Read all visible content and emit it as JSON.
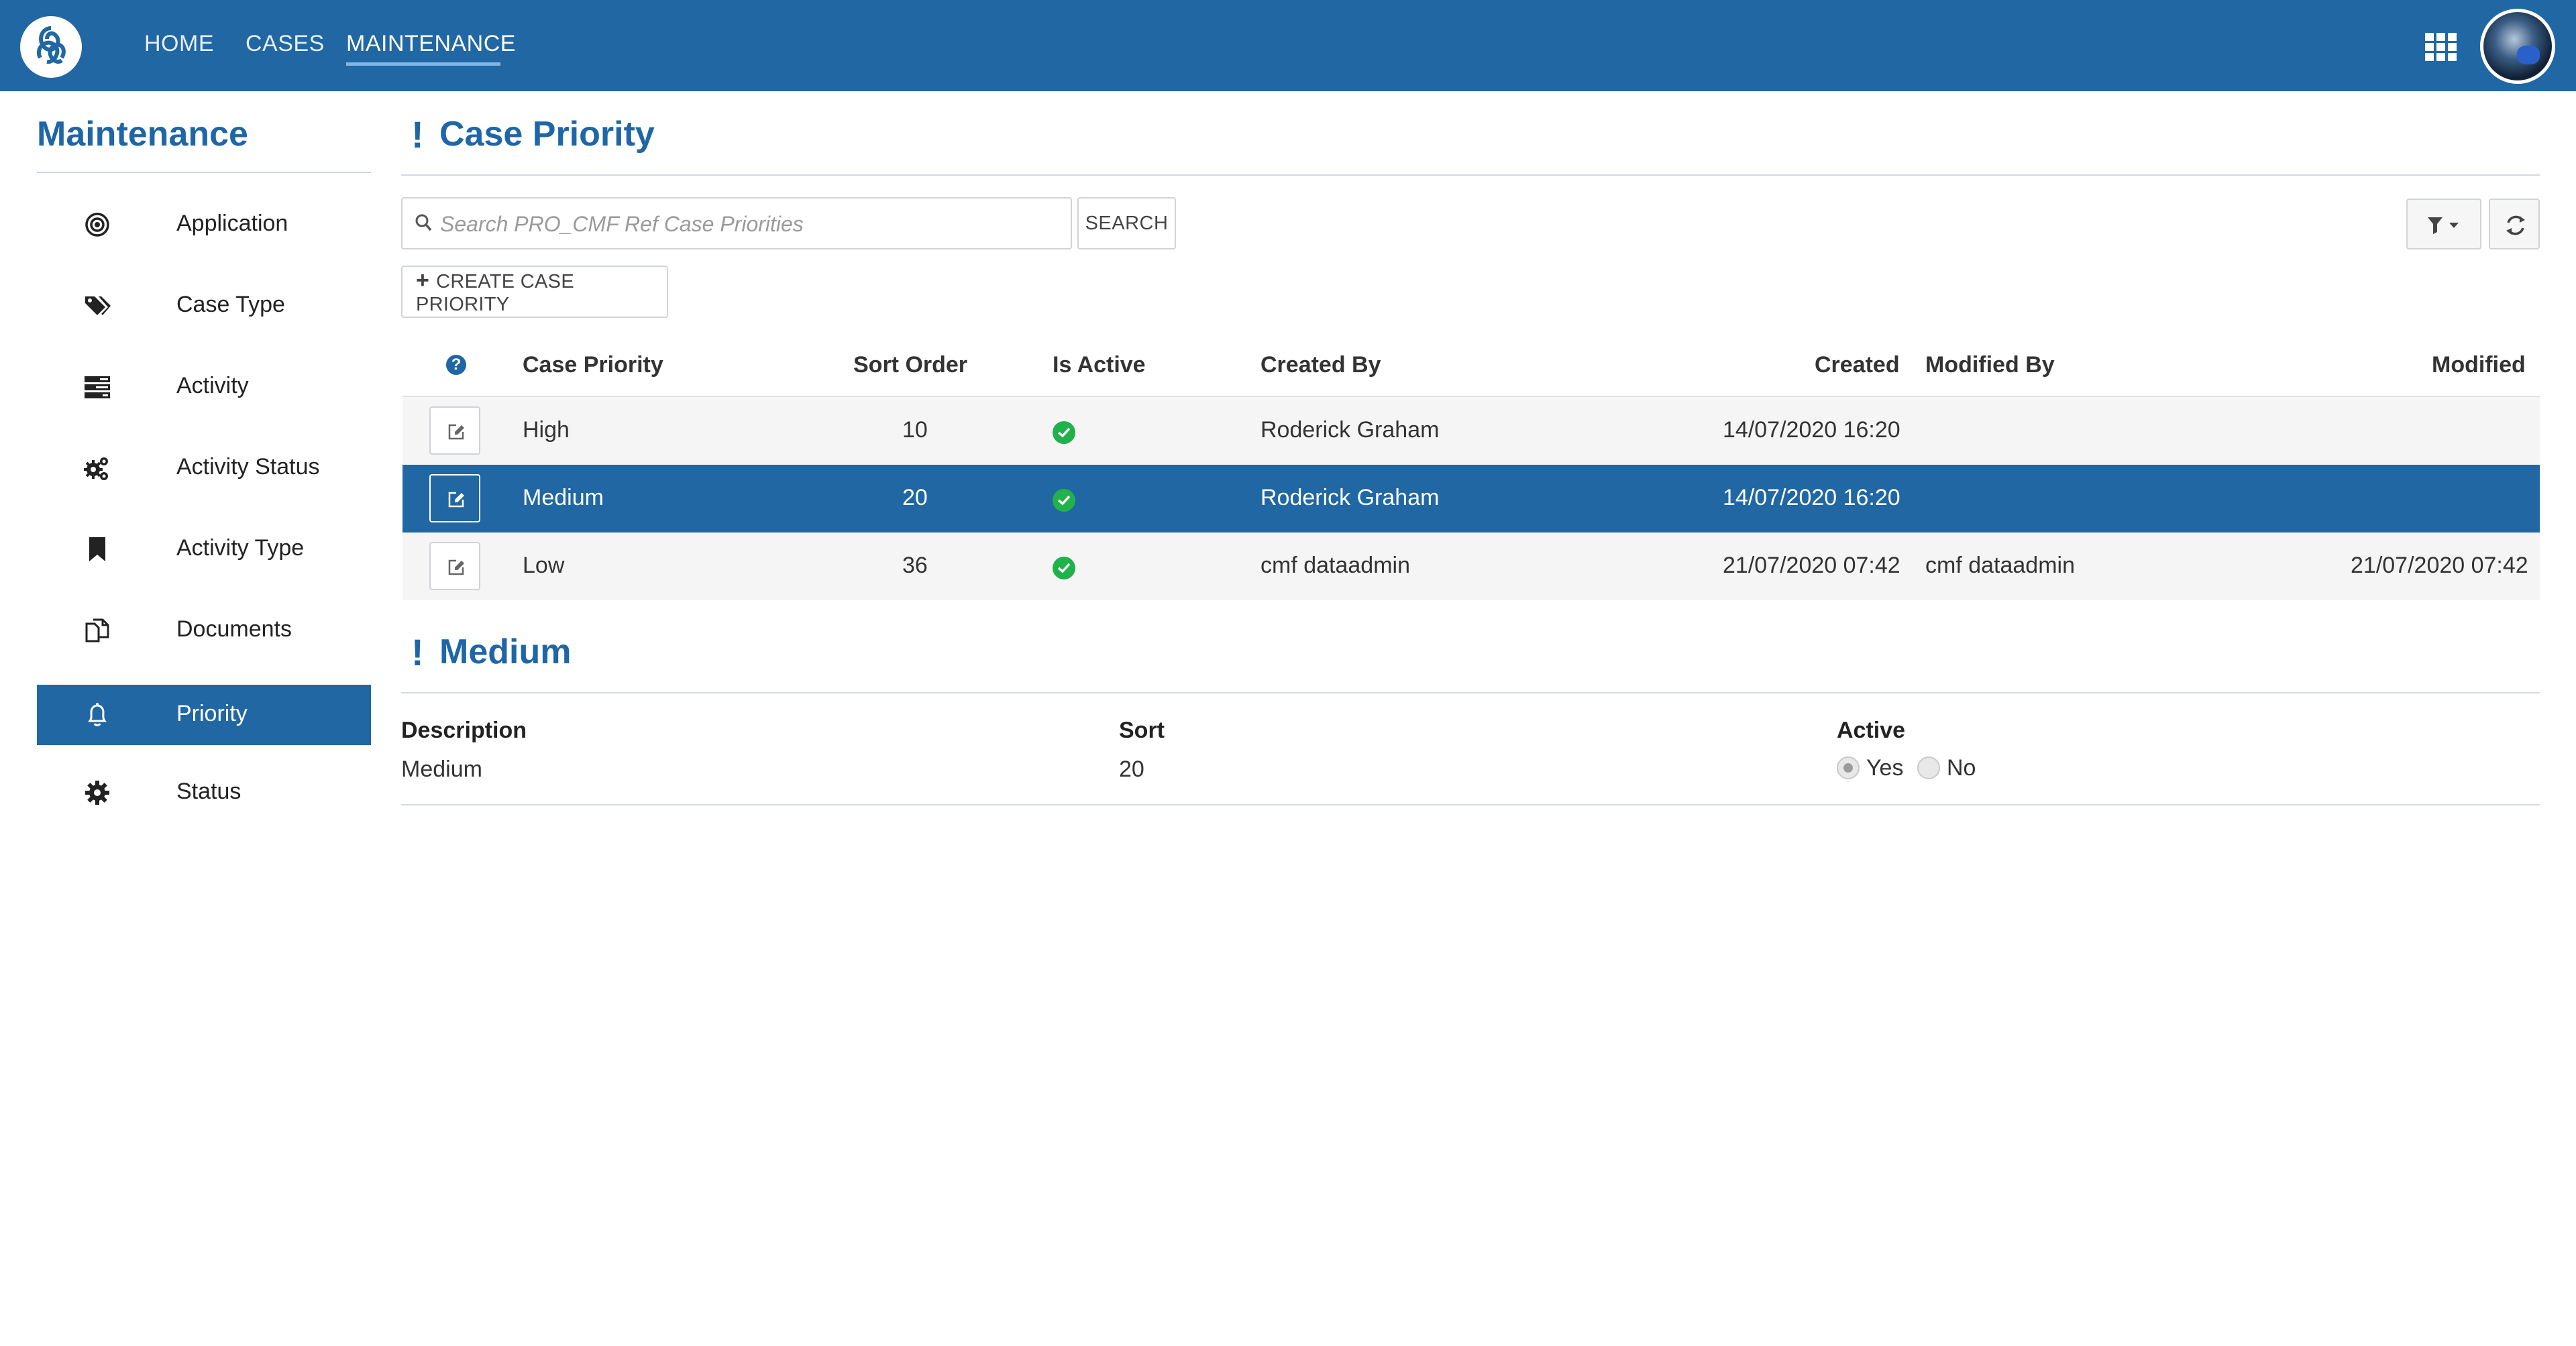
{
  "nav": {
    "items": [
      "HOME",
      "CASES",
      "MAINTENANCE"
    ],
    "active": "MAINTENANCE"
  },
  "sidebar": {
    "title": "Maintenance",
    "items": [
      {
        "label": "Application",
        "icon": "target-icon"
      },
      {
        "label": "Case Type",
        "icon": "tags-icon"
      },
      {
        "label": "Activity",
        "icon": "tasks-icon"
      },
      {
        "label": "Activity Status",
        "icon": "cogs-icon"
      },
      {
        "label": "Activity Type",
        "icon": "bookmark-icon"
      },
      {
        "label": "Documents",
        "icon": "documents-icon"
      },
      {
        "label": "Priority",
        "icon": "bell-icon",
        "active": true
      },
      {
        "label": "Status",
        "icon": "gear-icon"
      }
    ]
  },
  "main": {
    "title_mark": "!",
    "title": "Case Priority",
    "search": {
      "placeholder": "Search PRO_CMF Ref Case Priorities",
      "button": "SEARCH"
    },
    "create_button": "CREATE CASE PRIORITY",
    "table": {
      "headers": [
        "Case Priority",
        "Sort Order",
        "Is Active",
        "Created By",
        "Created",
        "Modified By",
        "Modified"
      ],
      "rows": [
        {
          "priority": "High",
          "sort": "10",
          "active": true,
          "created_by": "Roderick Graham",
          "created": "14/07/2020 16:20",
          "modified_by": "",
          "modified": ""
        },
        {
          "priority": "Medium",
          "sort": "20",
          "active": true,
          "created_by": "Roderick Graham",
          "created": "14/07/2020 16:20",
          "modified_by": "",
          "modified": "",
          "selected": true
        },
        {
          "priority": "Low",
          "sort": "36",
          "active": true,
          "created_by": "cmf dataadmin",
          "created": "21/07/2020 07:42",
          "modified_by": "cmf dataadmin",
          "modified": "21/07/2020 07:42"
        }
      ]
    }
  },
  "detail": {
    "title_mark": "!",
    "title": "Medium",
    "description_label": "Description",
    "description_value": "Medium",
    "sort_label": "Sort",
    "sort_value": "20",
    "active_label": "Active",
    "active_options": [
      "Yes",
      "No"
    ],
    "active_selected": "Yes"
  },
  "colors": {
    "primary": "#2067a3",
    "accent_title": "#1f66a6",
    "active_check": "#20b14a"
  }
}
